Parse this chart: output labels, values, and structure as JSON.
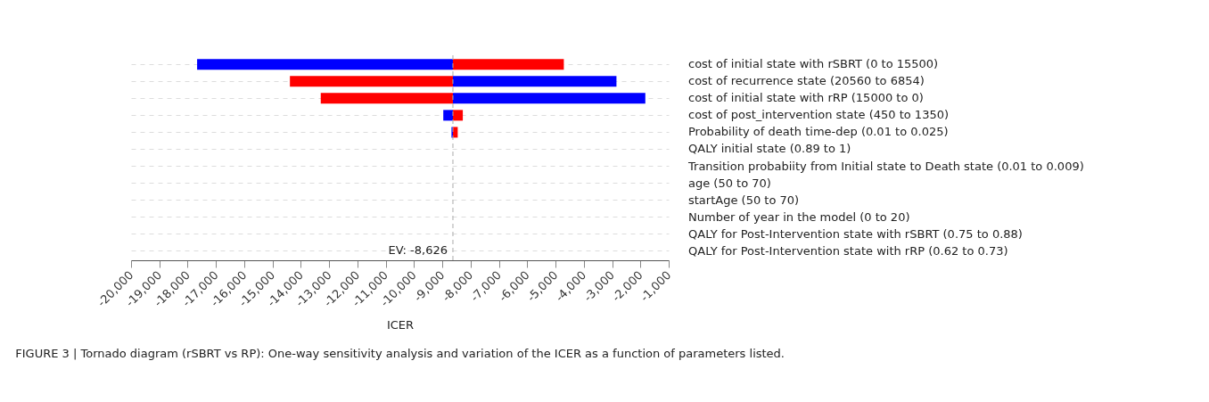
{
  "chart_data": {
    "type": "bar",
    "orientation": "horizontal",
    "xlabel": "ICER",
    "categories": [
      "cost of initial state with rSBRT (0 to 15500)",
      "cost of recurrence state (20560 to 6854)",
      "cost of initial state with rRP (15000 to 0)",
      "cost of post_intervention state (450 to 1350)",
      "Probability of death time-dep (0.01 to 0.025)",
      "QALY initial state (0.89 to 1)",
      "Transition probabiity from Initial state to Death state (0.01 to 0.009)",
      "age (50 to 70)",
      "startAge (50 to 70)",
      "Number of year in the model (0 to 20)",
      "QALY for Post-Intervention state with rSBRT (0.75 to 0.88)",
      "QALY for Post-Intervention state with rRP (0.62 to 0.73)"
    ],
    "series": [
      {
        "color": "#0000ff",
        "base": [
          -8626,
          -8626,
          -8626,
          -8626,
          -8626,
          null,
          null,
          null,
          null,
          null,
          null,
          null
        ],
        "values": [
          -9040,
          5780,
          6800,
          -340,
          -50,
          null,
          null,
          null,
          null,
          null,
          null,
          null
        ]
      },
      {
        "color": "#ff0000",
        "base": [
          -8626,
          -8626,
          -8626,
          -8626,
          -8626,
          null,
          null,
          null,
          null,
          null,
          null,
          null
        ],
        "values": [
          3920,
          -5760,
          -4670,
          350,
          170,
          null,
          null,
          null,
          null,
          null,
          null,
          null
        ]
      }
    ],
    "xlim": [
      -20000,
      -1000
    ],
    "xticks": [
      {
        "value": -20000,
        "label": "-20,000"
      },
      {
        "value": -19000,
        "label": "-19,000"
      },
      {
        "value": -18000,
        "label": "-18,000"
      },
      {
        "value": -17000,
        "label": "-17,000"
      },
      {
        "value": -16000,
        "label": "-16,000"
      },
      {
        "value": -15000,
        "label": "-15,000"
      },
      {
        "value": -14000,
        "label": "-14,000"
      },
      {
        "value": -13000,
        "label": "-13,000"
      },
      {
        "value": -12000,
        "label": "-12,000"
      },
      {
        "value": -11000,
        "label": "-11,000"
      },
      {
        "value": -10000,
        "label": "-10,000"
      },
      {
        "value": -9000,
        "label": "-9,000"
      },
      {
        "value": -8000,
        "label": "-8,000"
      },
      {
        "value": -7000,
        "label": "-7,000"
      },
      {
        "value": -6000,
        "label": "-6,000"
      },
      {
        "value": -5000,
        "label": "-5,000"
      },
      {
        "value": -4000,
        "label": "-4,000"
      },
      {
        "value": -3000,
        "label": "-3,000"
      },
      {
        "value": -2000,
        "label": "-2,000"
      },
      {
        "value": -1000,
        "label": "-1,000"
      }
    ],
    "ref_lines": [
      {
        "axis": "x",
        "value": -8626,
        "label": "EV: -8,626",
        "color": "#aaaaaa",
        "line_style": "dashed"
      }
    ],
    "grid": "y",
    "legend": false,
    "annotations": [
      "FIGURE 3 | Tornado diagram (rSBRT vs RP): One-way sensitivity analysis and variation of the ICER as a function of parameters listed."
    ]
  }
}
